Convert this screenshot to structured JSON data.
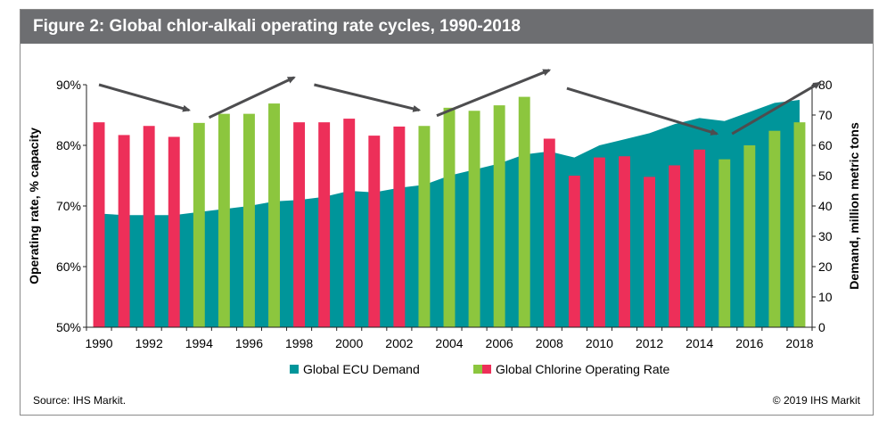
{
  "figure": {
    "title": "Figure 2: Global chlor-alkali operating rate cycles, 1990-2018",
    "source": "Source: IHS Markit.",
    "copyright": "© 2019 IHS Markit"
  },
  "colors": {
    "title_bg": "#6d6e71",
    "demand": "#00959a",
    "rate_low": "#ed2f59",
    "rate_high": "#8cc63e",
    "arrow": "#4d4d4f"
  },
  "chart_data": {
    "type": "bar",
    "title": "Figure 2: Global chlor-alkali operating rate cycles, 1990-2018",
    "x_tick_labels": [
      "1990",
      "1992",
      "1994",
      "1996",
      "1998",
      "2000",
      "2002",
      "2004",
      "2006",
      "2008",
      "2010",
      "2012",
      "2014",
      "2016",
      "2018"
    ],
    "years": [
      1990,
      1991,
      1992,
      1993,
      1994,
      1995,
      1996,
      1997,
      1998,
      1999,
      2000,
      2001,
      2002,
      2003,
      2004,
      2005,
      2006,
      2007,
      2008,
      2009,
      2010,
      2011,
      2012,
      2013,
      2014,
      2015,
      2016,
      2017,
      2018
    ],
    "ylabel_left": "Operating rate, % capacity",
    "ylabel_right": "Demand, million metric tons",
    "y_left_ticks": [
      "50%",
      "60%",
      "70%",
      "80%",
      "90%"
    ],
    "y_left_range": [
      50,
      90
    ],
    "y_right_ticks": [
      "0",
      "10",
      "20",
      "30",
      "40",
      "50",
      "60",
      "70",
      "80"
    ],
    "y_right_range": [
      0,
      80
    ],
    "grid": false,
    "legend_position": "bottom",
    "series": [
      {
        "name": "Global ECU Demand",
        "type": "area",
        "axis": "right",
        "values": [
          37.5,
          37,
          37,
          37,
          38,
          39,
          40,
          41.5,
          42,
          43,
          45,
          44.5,
          46,
          47,
          50,
          52,
          54,
          57,
          58,
          56,
          60,
          62,
          64,
          67,
          69,
          68,
          71,
          74,
          75
        ]
      },
      {
        "name": "Global Chlorine Operating Rate",
        "type": "bar",
        "axis": "left",
        "values": [
          83.8,
          81.7,
          83.2,
          81.4,
          83.7,
          85.2,
          85.2,
          86.9,
          83.8,
          83.8,
          84.4,
          81.6,
          83.1,
          83.2,
          86.2,
          85.7,
          86.6,
          88.0,
          81.1,
          75.0,
          78.0,
          78.2,
          74.8,
          76.7,
          79.3,
          77.7,
          80.0,
          82.4,
          83.8
        ],
        "phase": [
          "low",
          "low",
          "low",
          "low",
          "high",
          "high",
          "high",
          "high",
          "low",
          "low",
          "low",
          "low",
          "low",
          "high",
          "high",
          "high",
          "high",
          "high",
          "low",
          "low",
          "low",
          "low",
          "low",
          "low",
          "low",
          "high",
          "high",
          "high",
          "high"
        ]
      }
    ],
    "annotations": "arrows showing operating rate cycles"
  }
}
